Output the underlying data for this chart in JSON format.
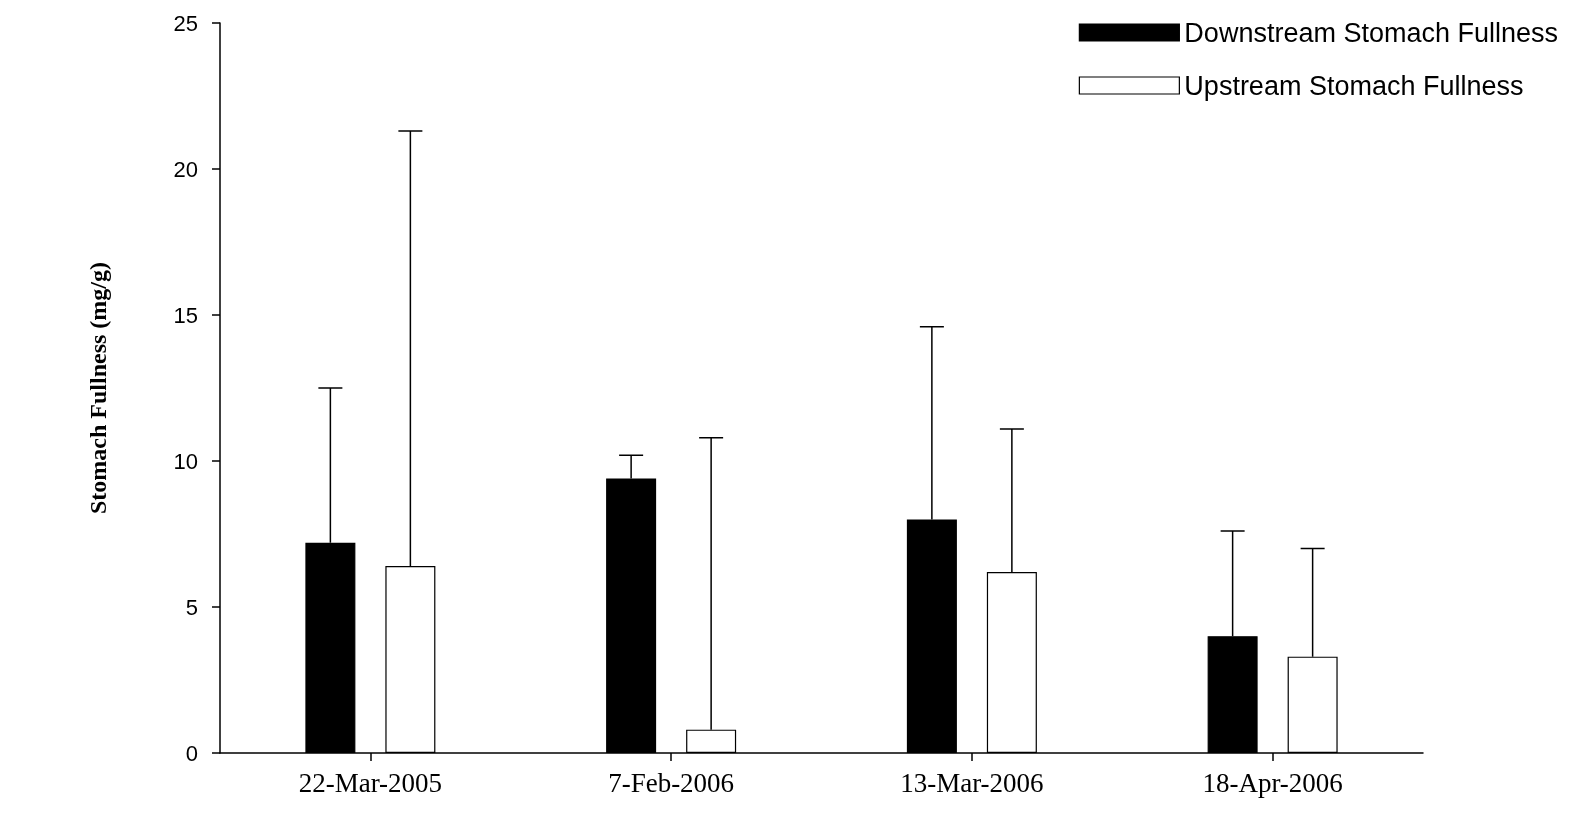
{
  "chart_data": {
    "type": "bar",
    "ylabel": "Stomach Fullness (mg/g)",
    "categories": [
      "22-Mar-2005",
      "7-Feb-2006",
      "13-Mar-2006",
      "18-Apr-2006"
    ],
    "series": [
      {
        "name": "Downstream Stomach Fullness",
        "color": "#000000",
        "values": [
          7.2,
          9.4,
          8.0,
          4.0
        ],
        "errors": [
          [
            7.2,
            12.5
          ],
          [
            9.4,
            10.2
          ],
          [
            8.0,
            14.6
          ],
          [
            4.0,
            7.6
          ]
        ]
      },
      {
        "name": "Upstream Stomach Fullness",
        "color": "#ffffff",
        "values": [
          6.4,
          0.8,
          6.2,
          3.3
        ],
        "errors": [
          [
            6.4,
            21.3
          ],
          [
            0.8,
            10.8
          ],
          [
            6.2,
            11.1
          ],
          [
            3.3,
            7.0
          ]
        ]
      }
    ],
    "ylim": [
      0,
      25
    ],
    "yticks": [
      0,
      5,
      10,
      15,
      20,
      25
    ],
    "grid": false,
    "legend": "top right"
  }
}
